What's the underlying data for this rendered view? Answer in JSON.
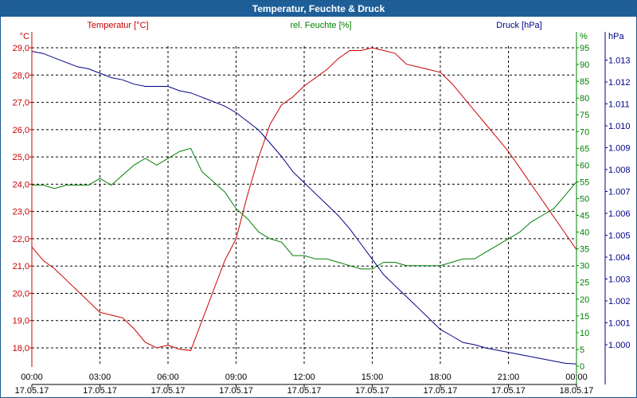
{
  "window": {
    "title": "Temperatur, Feuchte & Druck"
  },
  "colors": {
    "temperature": "#cc0000",
    "humidity": "#008000",
    "pressure": "#00008b",
    "title_bar": "#1f5f99"
  },
  "chart_data": {
    "type": "line",
    "title": "Temperatur, Feuchte & Druck",
    "grid": true,
    "x_ticks": [
      {
        "time": "00:00",
        "date": "17.05.17"
      },
      {
        "time": "03:00",
        "date": "17.05.17"
      },
      {
        "time": "06:00",
        "date": "17.05.17"
      },
      {
        "time": "09:00",
        "date": "17.05.17"
      },
      {
        "time": "12:00",
        "date": "17.05.17"
      },
      {
        "time": "15:00",
        "date": "17.05.17"
      },
      {
        "time": "18:00",
        "date": "17.05.17"
      },
      {
        "time": "21:00",
        "date": "17.05.17"
      },
      {
        "time": "00:00",
        "date": "18.05.17"
      }
    ],
    "axes": {
      "temperature": {
        "unit": "°C",
        "label": "Temperatur [°C]",
        "ylim": [
          17.3,
          29.3
        ],
        "ticks": [
          "18,0",
          "19,0",
          "20,0",
          "21,0",
          "22,0",
          "23,0",
          "24,0",
          "25,0",
          "26,0",
          "27,0",
          "28,0",
          "29,0"
        ]
      },
      "humidity": {
        "unit": "%",
        "label": "rel. Feuchte [%]",
        "ylim": [
          0,
          97
        ],
        "ticks": [
          "0",
          "5",
          "10",
          "15",
          "20",
          "25",
          "30",
          "35",
          "40",
          "45",
          "50",
          "55",
          "60",
          "65",
          "70",
          "75",
          "80",
          "85",
          "90",
          "95"
        ]
      },
      "pressure": {
        "unit": "hPa",
        "label": "Druck [hPa]",
        "ylim": [
          0.99925,
          1.0137
        ],
        "ticks": [
          "1.000",
          "1.001",
          "1.002",
          "1.003",
          "1.004",
          "1.005",
          "1.006",
          "1.007",
          "1.008",
          "1.009",
          "1.010",
          "1.011",
          "1.012",
          "1.013"
        ]
      }
    },
    "series": [
      {
        "name": "Temperatur [°C]",
        "axis": "temperature",
        "x": [
          0,
          0.5,
          1,
          1.5,
          2,
          2.5,
          3,
          3.5,
          4,
          4.5,
          5,
          5.5,
          6,
          6.5,
          7,
          7.5,
          8,
          8.5,
          9,
          9.5,
          10,
          10.5,
          11,
          11.5,
          12,
          12.5,
          13,
          13.5,
          14,
          14.5,
          15,
          15.5,
          16,
          16.5,
          17,
          17.5,
          18,
          18.5,
          19,
          19.5,
          20,
          20.5,
          21,
          21.5,
          22,
          22.5,
          23,
          23.5,
          24
        ],
        "y": [
          21.7,
          21.2,
          20.9,
          20.5,
          20.1,
          19.7,
          19.3,
          19.2,
          19.1,
          18.7,
          18.2,
          18.0,
          18.1,
          17.95,
          17.9,
          19.0,
          20.1,
          21.2,
          22.0,
          23.6,
          25.0,
          26.2,
          26.9,
          27.2,
          27.6,
          27.9,
          28.2,
          28.6,
          28.9,
          28.9,
          29.0,
          28.9,
          28.8,
          28.4,
          28.3,
          28.2,
          28.1,
          27.7,
          27.2,
          26.7,
          26.2,
          25.7,
          25.2,
          24.6,
          24.0,
          23.4,
          22.8,
          22.2,
          21.6
        ]
      },
      {
        "name": "rel. Feuchte [%]",
        "axis": "humidity",
        "x": [
          0,
          0.5,
          1,
          1.5,
          2,
          2.5,
          3,
          3.5,
          4,
          4.5,
          5,
          5.5,
          6,
          6.5,
          7,
          7.5,
          8,
          8.5,
          9,
          9.5,
          10,
          10.5,
          11,
          11.5,
          12,
          12.5,
          13,
          13.5,
          14,
          14.5,
          15,
          15.5,
          16,
          16.5,
          17,
          17.5,
          18,
          18.5,
          19,
          19.5,
          20,
          20.5,
          21,
          21.5,
          22,
          22.5,
          23,
          23.5,
          24
        ],
        "y": [
          54,
          54,
          53,
          54,
          54,
          54,
          56,
          54,
          57,
          60,
          62,
          60,
          62,
          64,
          65,
          58,
          55,
          52,
          47,
          44,
          40,
          38,
          37,
          33,
          33,
          32,
          32,
          31,
          30,
          29,
          29,
          31,
          31,
          30,
          30,
          30,
          30,
          31,
          32,
          32,
          34,
          36,
          38,
          40,
          43,
          45,
          47,
          51,
          55
        ]
      },
      {
        "name": "Druck [hPa]",
        "axis": "pressure",
        "x": [
          0,
          0.5,
          1,
          1.5,
          2,
          2.5,
          3,
          3.5,
          4,
          4.5,
          5,
          5.5,
          6,
          6.5,
          7,
          7.5,
          8,
          8.5,
          9,
          9.5,
          10,
          10.5,
          11,
          11.5,
          12,
          12.5,
          13,
          13.5,
          14,
          14.5,
          15,
          15.5,
          16,
          16.5,
          17,
          17.5,
          18,
          18.5,
          19,
          19.5,
          20,
          20.5,
          21,
          21.5,
          22,
          22.5,
          23,
          23.5,
          24
        ],
        "y": [
          1.0134,
          1.0133,
          1.0131,
          1.0129,
          1.0127,
          1.0126,
          1.0124,
          1.0122,
          1.0121,
          1.0119,
          1.0118,
          1.0118,
          1.0118,
          1.0116,
          1.0115,
          1.0113,
          1.0111,
          1.0109,
          1.0106,
          1.0102,
          1.0098,
          1.0092,
          1.0086,
          1.0079,
          1.0074,
          1.0069,
          1.0064,
          1.0059,
          1.0053,
          1.0046,
          1.0039,
          1.0032,
          1.0027,
          1.0022,
          1.0017,
          1.0012,
          1.0007,
          1.0004,
          1.0001,
          1.0,
          0.99985,
          0.99975,
          0.99965,
          0.99955,
          0.99945,
          0.99935,
          0.99925,
          0.99915,
          0.99912
        ]
      }
    ]
  }
}
